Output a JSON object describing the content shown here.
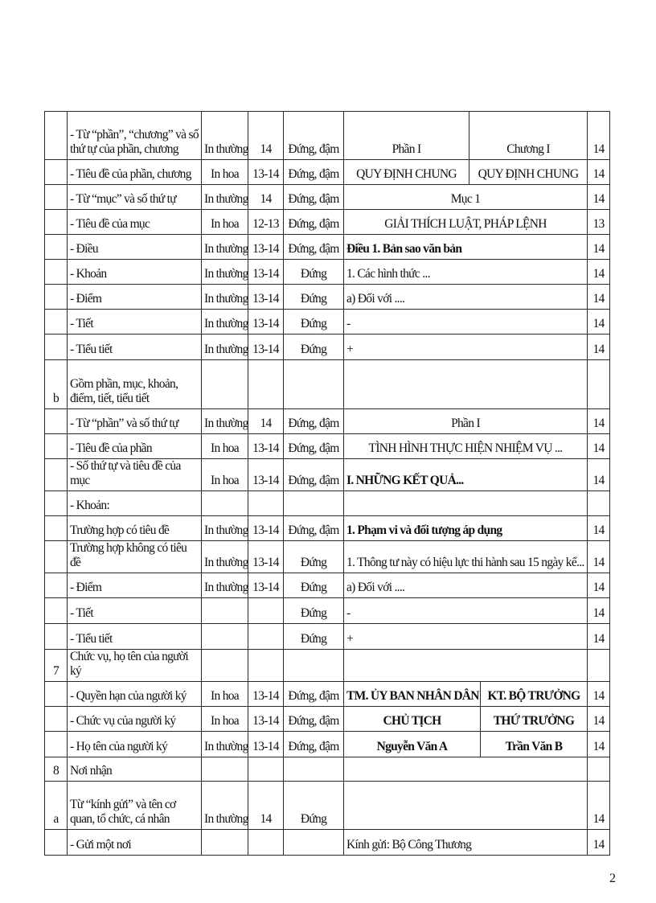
{
  "rows": [
    {
      "no": "",
      "item": "- Từ “phần”, “chương” và số thứ tự của phần, chương",
      "case": "In thường",
      "size": "14",
      "style": "Đứng, đậm",
      "samples": [
        "Phần I",
        "Chương I"
      ],
      "pt": "14"
    },
    {
      "no": "",
      "item": "- Tiêu đề của phần, chương",
      "case": "In hoa",
      "size": "13-14",
      "style": "Đứng, đậm",
      "samples": [
        "QUY ĐỊNH CHUNG",
        "QUY ĐỊNH CHUNG"
      ],
      "pt": "14"
    },
    {
      "no": "",
      "item": "- Từ “mục” và số thứ tự",
      "case": "In thường",
      "size": "14",
      "style": "Đứng, đậm",
      "samples": [
        "Mục 1"
      ],
      "pt": "14"
    },
    {
      "no": "",
      "item": "- Tiêu đề của mục",
      "case": "In hoa",
      "size": "12-13",
      "style": "Đứng, đậm",
      "samples": [
        "GIẢI THÍCH LUẬT, PHÁP LỆNH"
      ],
      "pt": "13"
    },
    {
      "no": "",
      "item": "- Điều",
      "case": "In thường",
      "size": "13-14",
      "style": "Đứng, đậm",
      "samples": [
        "Điều 1. Bản sao văn bản"
      ],
      "pt": "14"
    },
    {
      "no": "",
      "item": "- Khoản",
      "case": "In thường",
      "size": "13-14",
      "style": "Đứng",
      "samples": [
        "1. Các hình thức ..."
      ],
      "pt": "14"
    },
    {
      "no": "",
      "item": "- Điểm",
      "case": "In thường",
      "size": "13-14",
      "style": "Đứng",
      "samples": [
        "a) Đối với ...."
      ],
      "pt": "14"
    },
    {
      "no": "",
      "item": "- Tiết",
      "case": "In thường",
      "size": "13-14",
      "style": "Đứng",
      "samples": [
        "-"
      ],
      "pt": "14"
    },
    {
      "no": "",
      "item": "- Tiểu tiết",
      "case": "In thường",
      "size": "13-14",
      "style": "Đứng",
      "samples": [
        "+"
      ],
      "pt": "14"
    },
    {
      "no": "b",
      "item": "Gồm phần, mục, khoản, điểm, tiết, tiểu tiết",
      "case": "",
      "size": "",
      "style": "",
      "samples": [
        ""
      ],
      "pt": ""
    },
    {
      "no": "",
      "item": "- Từ “phần” và số thứ tự",
      "case": "In thường",
      "size": "14",
      "style": "Đứng, đậm",
      "samples": [
        "Phần I"
      ],
      "pt": "14"
    },
    {
      "no": "",
      "item": "- Tiêu đề của phần",
      "case": "In hoa",
      "size": "13-14",
      "style": "Đứng, đậm",
      "samples": [
        "TÌNH HÌNH THỰC HIỆN NHIỆM VỤ ..."
      ],
      "pt": "14"
    },
    {
      "no": "",
      "item": "- Số thứ tự và tiêu đề của mục",
      "case": "In hoa",
      "size": "13-14",
      "style": "Đứng, đậm",
      "samples": [
        "I. NHỮNG KẾT QUẢ..."
      ],
      "pt": "14"
    },
    {
      "no": "",
      "item": "- Khoản:",
      "case": "",
      "size": "",
      "style": "",
      "samples": [
        ""
      ],
      "pt": ""
    },
    {
      "no": "",
      "item": "Trường hợp có tiêu đề",
      "case": "In thường",
      "size": "13-14",
      "style": "Đứng, đậm",
      "samples": [
        "1. Phạm vi và đối tượng áp dụng"
      ],
      "pt": "14"
    },
    {
      "no": "",
      "item": "Trường hợp không có tiêu đề",
      "case": "In thường",
      "size": "13-14",
      "style": "Đứng",
      "samples": [
        "1. Thông tư này có hiệu lực thi hành sau 15 ngày kể..."
      ],
      "pt": "14"
    },
    {
      "no": "",
      "item": "- Điểm",
      "case": "In thường",
      "size": "13-14",
      "style": "Đứng",
      "samples": [
        "a) Đối với ...."
      ],
      "pt": "14"
    },
    {
      "no": "",
      "item": "- Tiết",
      "case": "",
      "size": "",
      "style": "Đứng",
      "samples": [
        "-"
      ],
      "pt": "14"
    },
    {
      "no": "",
      "item": "- Tiểu tiết",
      "case": "",
      "size": "",
      "style": "Đứng",
      "samples": [
        "+"
      ],
      "pt": "14"
    },
    {
      "no": "7",
      "item": "Chức vụ, họ tên của người ký",
      "case": "",
      "size": "",
      "style": "",
      "samples": [
        ""
      ],
      "pt": ""
    },
    {
      "no": "",
      "item": "- Quyền hạn của người ký",
      "case": "In hoa",
      "size": "13-14",
      "style": "Đứng, đậm",
      "samples": [
        "TM. ỦY BAN NHÂN DÂN",
        "KT. BỘ TRƯỞNG"
      ],
      "pt": "14"
    },
    {
      "no": "",
      "item": "- Chức vụ của người ký",
      "case": "In hoa",
      "size": "13-14",
      "style": "Đứng, đậm",
      "samples": [
        "CHỦ TỊCH",
        "THỨ TRƯỞNG"
      ],
      "pt": "14"
    },
    {
      "no": "",
      "item": "- Họ tên của người ký",
      "case": "In thường",
      "size": "13-14",
      "style": "Đứng, đậm",
      "samples": [
        "Nguyễn Văn A",
        "Trần Văn B"
      ],
      "pt": "14"
    },
    {
      "no": "8",
      "item": "Nơi nhận",
      "case": "",
      "size": "",
      "style": "",
      "samples": [
        ""
      ],
      "pt": ""
    },
    {
      "no": "a",
      "item": "Từ “kính gửi” và tên cơ quan, tổ chức, cá nhân",
      "case": "In thường",
      "size": "14",
      "style": "Đứng",
      "samples": [
        ""
      ],
      "pt": "14"
    },
    {
      "no": "",
      "item": "- Gửi một nơi",
      "case": "",
      "size": "",
      "style": "",
      "samples": [
        "Kính gửi: Bộ Công Thương"
      ],
      "pt": "14"
    }
  ],
  "page_number": "2"
}
